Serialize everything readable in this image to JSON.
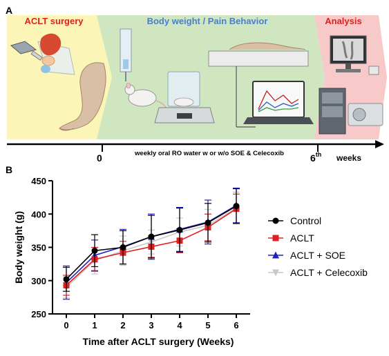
{
  "panel_a": {
    "label": "A",
    "stages": {
      "surgery": "ACLT surgery",
      "behavior": "Body weight / Pain Behavior",
      "analysis": "Analysis"
    },
    "timeline": {
      "start": "0",
      "end": "6",
      "end_superscript": "th",
      "treatment": "weekly oral RO water w or w/o SOE & Celecoxib",
      "unit": "weeks"
    },
    "colors": {
      "surgery_bg": "#fbf6b8",
      "behavior_bg": "#cfe6c0",
      "analysis_bg": "#f7c9c9",
      "surgery_title": "#e0201c",
      "behavior_title": "#4a7ec8",
      "analysis_title": "#e0201c"
    }
  },
  "panel_b": {
    "label": "B"
  },
  "chart_data": {
    "type": "line",
    "x": [
      0,
      1,
      2,
      3,
      4,
      5,
      6
    ],
    "xlabel": "Time after ACLT  surgery (Weeks)",
    "ylabel": "Body weight (g)",
    "ylim": [
      250,
      450
    ],
    "yticks": [
      250,
      300,
      350,
      400,
      450
    ],
    "legend_position": "right",
    "series": [
      {
        "name": "Control",
        "color": "#000000",
        "marker": "circle",
        "values": [
          302,
          345,
          350,
          366,
          376,
          387,
          412
        ],
        "errors": [
          18,
          24,
          25,
          32,
          33,
          29,
          26
        ]
      },
      {
        "name": "ACLT",
        "color": "#e02020",
        "marker": "square",
        "values": [
          293,
          332,
          342,
          351,
          360,
          380,
          408
        ],
        "errors": [
          15,
          18,
          17,
          16,
          18,
          20,
          22
        ]
      },
      {
        "name": "ACLT + SOE",
        "color": "#2020c0",
        "marker": "triangle-up",
        "values": [
          297,
          338,
          351,
          366,
          377,
          388,
          413
        ],
        "errors": [
          25,
          23,
          26,
          34,
          33,
          33,
          26
        ]
      },
      {
        "name": "ACLT + Celecoxib",
        "color": "#c8c8c8",
        "marker": "triangle-down",
        "values": [
          290,
          330,
          345,
          358,
          373,
          383,
          409
        ],
        "errors": [
          16,
          20,
          22,
          18,
          21,
          24,
          24
        ]
      }
    ]
  }
}
